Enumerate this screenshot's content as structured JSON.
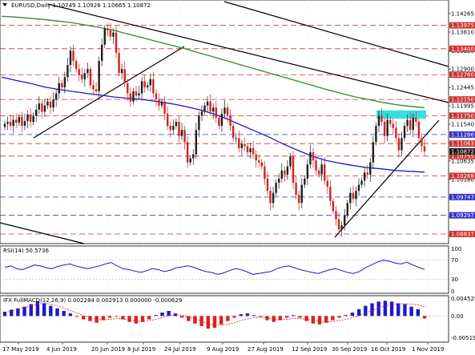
{
  "chart_data": {
    "type": "candlestick",
    "title": {
      "symbol": "EURUSD,Daily",
      "open": "1.10749",
      "high": "1.10926",
      "low": "1.10665",
      "close": "1.10872"
    },
    "x_tick_labels": [
      "17 May 2019",
      "4 Jun 2019",
      "20 Jun 2019",
      "8 Jul 2019",
      "24 Jul 2019",
      "9 Aug 2019",
      "27 Aug 2019",
      "12 Sep 2019",
      "30 Sep 2019",
      "16 Oct 2019",
      "1 Nov 2019"
    ],
    "price_axis": {
      "range": [
        1.086,
        1.146
      ],
      "tick_labels": [
        "1.14265",
        "1.13810",
        "1.13350",
        "1.12900",
        "1.12445",
        "1.11995",
        "1.11540",
        "1.11085",
        "1.10635",
        "1.10180",
        "1.09725",
        "1.09270",
        "1.08815"
      ]
    },
    "resistance_support_levels": [
      {
        "label": "1.13975",
        "value": 1.13975,
        "color": "#cc3333"
      },
      {
        "label": "1.13400",
        "value": 1.134,
        "color": "#cc3333"
      },
      {
        "label": "1.12760",
        "value": 1.1276,
        "color": "#cc3333"
      },
      {
        "label": "1.12150",
        "value": 1.1215,
        "color": "#cc3333"
      },
      {
        "label": "1.11750",
        "value": 1.1175,
        "color": "#cc3333"
      },
      {
        "label": "1.11286",
        "value": 1.11286,
        "color": "#3333cc"
      },
      {
        "label": "1.11063",
        "value": 1.11063,
        "color": "#cc3333"
      },
      {
        "label": "1.10755",
        "value": 1.10755,
        "color": "#cc3333"
      },
      {
        "label": "1.10268",
        "value": 1.10268,
        "color": "#cc3333"
      },
      {
        "label": "1.09747",
        "value": 1.09747,
        "color": "#3333cc"
      },
      {
        "label": "1.09297",
        "value": 1.09297,
        "color": "#3333cc"
      },
      {
        "label": "1.08837",
        "value": 1.08837,
        "color": "#cc3333"
      }
    ],
    "current_price": {
      "label": "1.10872",
      "value": 1.10872
    },
    "candles_close": [
      1.1155,
      1.116,
      1.115,
      1.1165,
      1.1158,
      1.1172,
      1.115,
      1.1162,
      1.1178,
      1.116,
      1.1175,
      1.119,
      1.1205,
      1.1185,
      1.12,
      1.121,
      1.1195,
      1.1215,
      1.123,
      1.1255,
      1.1245,
      1.127,
      1.13,
      1.1335,
      1.131,
      1.129,
      1.1275,
      1.1265,
      1.128,
      1.129,
      1.125,
      1.124,
      1.1235,
      1.131,
      1.135,
      1.139,
      1.1385,
      1.137,
      1.138,
      1.133,
      1.128,
      1.129,
      1.1255,
      1.123,
      1.121,
      1.1235,
      1.1225,
      1.123,
      1.126,
      1.1245,
      1.125,
      1.1265,
      1.123,
      1.1215,
      1.12,
      1.121,
      1.118,
      1.115,
      1.114,
      1.115,
      1.116,
      1.1125,
      1.114,
      1.111,
      1.106,
      1.107,
      1.108,
      1.114,
      1.1175,
      1.1185,
      1.12,
      1.121,
      1.1185,
      1.1195,
      1.117,
      1.115,
      1.118,
      1.1195,
      1.1175,
      1.115,
      1.112,
      1.112,
      1.1095,
      1.1105,
      1.11,
      1.1085,
      1.1095,
      1.108,
      1.1065,
      1.106,
      1.105,
      1.102,
      1.099,
      1.096,
      1.0985,
      1.101,
      1.102,
      1.104,
      1.103,
      1.105,
      1.1075,
      1.101,
      1.098,
      1.096,
      1.1005,
      1.102,
      1.1055,
      1.1085,
      1.1065,
      1.104,
      1.103,
      1.1055,
      1.1015,
      1.1,
      1.0965,
      1.094,
      1.092,
      1.0895,
      1.0905,
      1.093,
      1.096,
      1.0985,
      1.097,
      1.099,
      1.1005,
      1.1015,
      1.1035,
      1.103,
      1.106,
      1.111,
      1.115,
      1.1175,
      1.116,
      1.1125,
      1.1165,
      1.1155,
      1.1145,
      1.112,
      1.109,
      1.112,
      1.115,
      1.1165,
      1.114,
      1.117,
      1.116,
      1.112,
      1.11,
      1.1087
    ],
    "sma_blue": [
      1.127,
      1.1262,
      1.1255,
      1.1246,
      1.124,
      1.1235,
      1.123,
      1.1226,
      1.1221,
      1.1218,
      1.1215,
      1.121,
      1.1205,
      1.1198,
      1.119,
      1.118,
      1.1167,
      1.1152,
      1.1137,
      1.1122,
      1.1105,
      1.109,
      1.1076,
      1.1065,
      1.1058,
      1.1052,
      1.1047,
      1.1044,
      1.104,
      1.1038,
      1.1036
    ],
    "sma_green": [
      1.142,
      1.1418,
      1.1415,
      1.1412,
      1.1408,
      1.1404,
      1.1398,
      1.1392,
      1.1385,
      1.1376,
      1.1367,
      1.1358,
      1.1349,
      1.134,
      1.133,
      1.132,
      1.131,
      1.13,
      1.129,
      1.128,
      1.127,
      1.126,
      1.125,
      1.124,
      1.1231,
      1.1222,
      1.1215,
      1.1208,
      1.1202,
      1.1198,
      1.1195
    ],
    "rsi": {
      "label": "RSI(14) 50.5736",
      "range": [
        0,
        100
      ],
      "tick_labels": [
        "100",
        "70",
        "30",
        "0"
      ],
      "values": [
        55,
        58,
        52,
        50,
        55,
        60,
        58,
        54,
        52,
        57,
        60,
        62,
        58,
        55,
        52,
        55,
        58,
        62,
        65,
        58,
        52,
        50,
        47,
        44,
        48,
        52,
        50,
        46,
        49,
        54,
        56,
        58,
        55,
        50,
        46,
        44,
        40,
        43,
        48,
        52,
        50,
        45,
        40,
        42,
        44,
        46,
        52,
        56,
        58,
        54,
        50,
        47,
        44,
        42,
        46,
        50,
        52,
        48,
        44,
        42,
        46,
        54,
        60,
        66,
        70,
        68,
        64,
        62,
        66,
        60,
        55,
        50.57
      ]
    },
    "macd": {
      "label": "IFX FullMACD(12,26,9) 0.002284 0.002913 0.000000 -0.000629",
      "range": [
        -0.0062,
        0.0048
      ],
      "tick_labels": [
        "0.004529",
        "0.00",
        "-0.005195"
      ],
      "values": [
        0.001,
        0.0015,
        0.0018,
        0.0022,
        0.0028,
        0.0035,
        0.003,
        0.0024,
        0.0018,
        0.0012,
        0.0006,
        -0.0002,
        -0.0008,
        -0.0012,
        -0.0016,
        -0.001,
        -0.0004,
        -0.0001,
        -0.0008,
        -0.0014,
        -0.0018,
        -0.0014,
        -0.0008,
        0.0002,
        0.0008,
        0.0012,
        0.0006,
        -0.0004,
        -0.0012,
        -0.0018,
        -0.0024,
        -0.003,
        -0.0028,
        -0.002,
        -0.0012,
        -0.0004,
        0.0004,
        0.0006,
        0.0002,
        -0.0002,
        -0.001,
        -0.0014,
        -0.001,
        -0.0004,
        0.0002,
        -0.0004,
        -0.0012,
        -0.0018,
        -0.002,
        -0.0016,
        -0.001,
        -0.0004,
        0.0002,
        0.0008,
        0.0016,
        0.0024,
        0.003,
        0.0034,
        0.0036,
        0.0034,
        0.003,
        0.0028,
        0.0022,
        0.0016,
        -0.0006
      ],
      "signal": [
        0.0008,
        0.0012,
        0.0016,
        0.002,
        0.0024,
        0.0028,
        0.003,
        0.0028,
        0.0024,
        0.0019,
        0.0013,
        0.0007,
        0.0001,
        -0.0004,
        -0.0008,
        -0.0009,
        -0.0008,
        -0.0006,
        -0.0007,
        -0.0009,
        -0.0012,
        -0.0013,
        -0.0011,
        -0.0008,
        -0.0004,
        0.0001,
        0.0003,
        0.0002,
        -0.0002,
        -0.0007,
        -0.0012,
        -0.0018,
        -0.0022,
        -0.0022,
        -0.002,
        -0.0016,
        -0.0011,
        -0.0007,
        -0.0004,
        -0.0003,
        -0.0005,
        -0.0008,
        -0.0009,
        -0.0008,
        -0.0006,
        -0.0006,
        -0.0008,
        -0.001,
        -0.0013,
        -0.0014,
        -0.0013,
        -0.0011,
        -0.0008,
        -0.0004,
        0.0001,
        0.0007,
        0.0013,
        0.0019,
        0.0024,
        0.0027,
        0.0029,
        0.0029,
        0.0028,
        0.0026,
        0.0022
      ]
    },
    "colors": {
      "bull": "#1f1f1f",
      "bear": "#d22222",
      "sma_blue": "#1a1acc",
      "sma_green": "#2e8b2e",
      "grid": "#e6e6e6",
      "highlight_zone": "#35e0e0",
      "current_tag": "#1a1a1a",
      "macd_pos": "#1a1acc",
      "macd_neg": "#dd2020"
    }
  }
}
